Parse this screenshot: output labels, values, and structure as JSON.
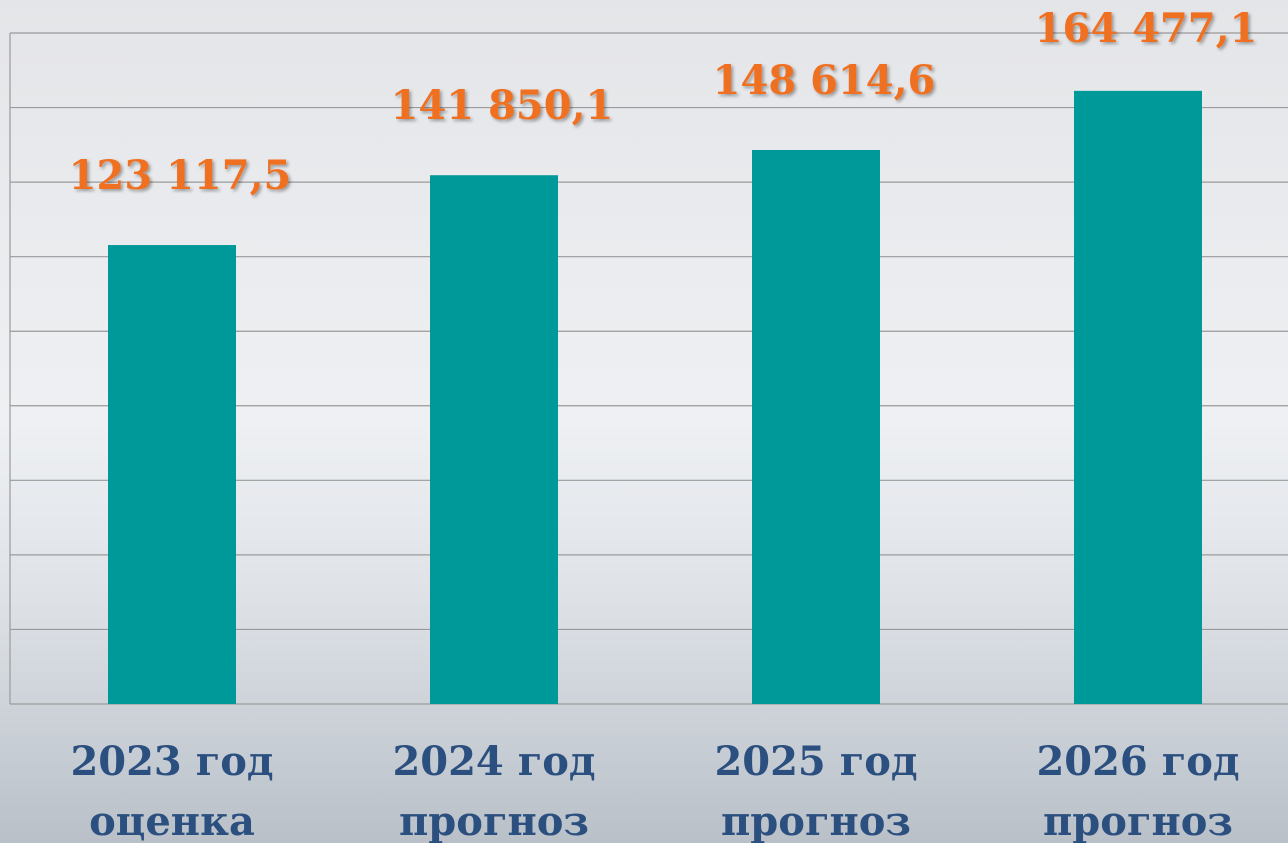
{
  "chart_data": {
    "type": "bar",
    "categories": [
      [
        "2023 год",
        "оценка"
      ],
      [
        "2024 год",
        "прогноз"
      ],
      [
        "2025 год",
        "прогноз"
      ],
      [
        "2026 год",
        "прогноз"
      ]
    ],
    "values": [
      123117.5,
      141850.1,
      148614.6,
      164477.1
    ],
    "value_labels": [
      "123 117,5",
      "141 850,1",
      "148 614,6",
      "164 477,1"
    ],
    "color": "#009999",
    "ylim": [
      0,
      180000
    ],
    "yticks": [
      0,
      20000,
      40000,
      60000,
      80000,
      100000,
      120000,
      140000,
      160000,
      180000
    ],
    "grid": true
  }
}
